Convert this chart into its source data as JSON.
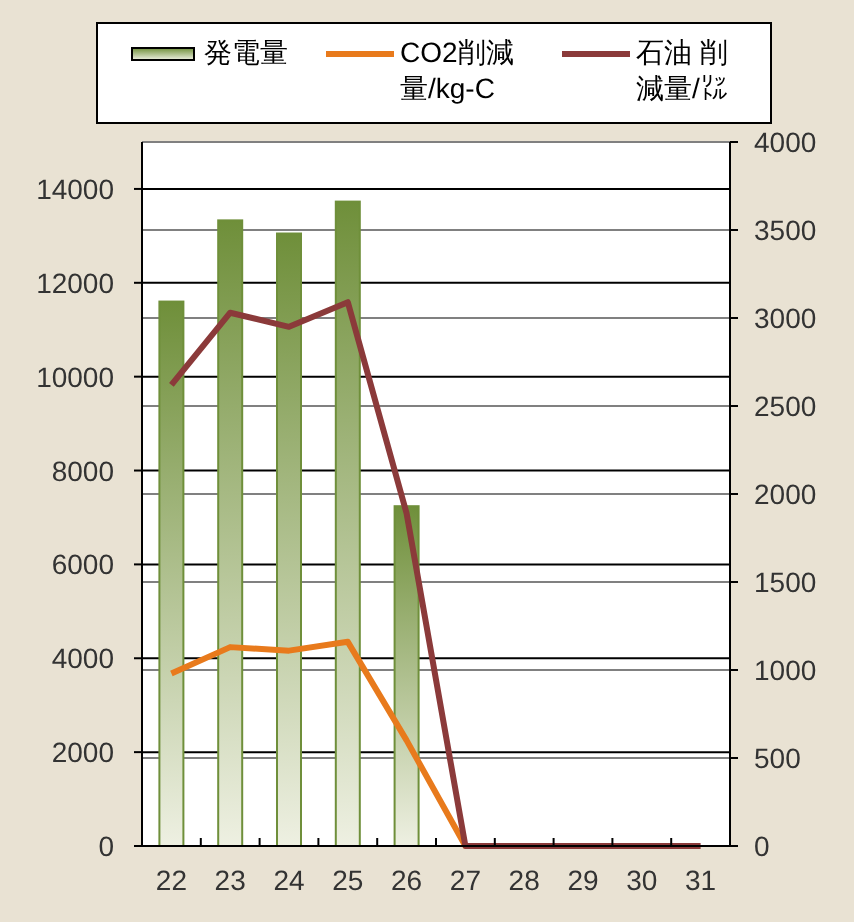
{
  "chart_data": {
    "type": "bar",
    "categories": [
      "22",
      "23",
      "24",
      "25",
      "26",
      "27",
      "28",
      "29",
      "30",
      "31"
    ],
    "series": [
      {
        "name": "発電量",
        "color": "#6f8f3a",
        "values": [
          11600,
          13330,
          13050,
          13730,
          7240,
          0,
          0,
          0,
          0,
          0
        ]
      },
      {
        "name": "CO2削減量/kg-C",
        "type": "line",
        "axis": "y2",
        "color": "#e87a1c",
        "values": [
          980,
          1130,
          1110,
          1160,
          600,
          0,
          0,
          null,
          null,
          null
        ]
      },
      {
        "name": "石油 削減量/㍑",
        "type": "line",
        "axis": "y2",
        "color": "#8b3a3a",
        "values": [
          2620,
          3030,
          2950,
          3090,
          1890,
          0,
          0,
          0,
          0,
          0
        ]
      }
    ],
    "ylim": [
      0,
      15000
    ],
    "yticks": [
      0,
      2000,
      4000,
      6000,
      8000,
      10000,
      12000,
      14000
    ],
    "y2lim": [
      0,
      4000
    ],
    "y2ticks": [
      0,
      500,
      1000,
      1500,
      2000,
      2500,
      3000,
      3500,
      4000
    ],
    "grid": true,
    "legend": "top",
    "marker": "none"
  }
}
